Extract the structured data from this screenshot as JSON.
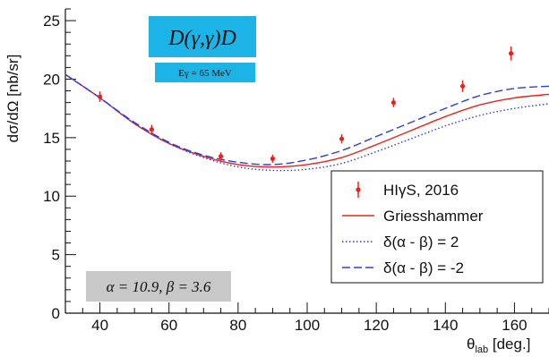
{
  "chart_data": {
    "type": "scatter",
    "title": "",
    "xlabel": "θlab [deg.]",
    "xlabel_main": "θ",
    "xlabel_sub": "lab",
    "xlabel_rest": " [deg.]",
    "ylabel": "dσ/dΩ [nb/sr]",
    "xlim": [
      30,
      170
    ],
    "ylim": [
      0,
      26
    ],
    "x_ticks": [
      40,
      60,
      80,
      100,
      120,
      140,
      160
    ],
    "y_ticks": [
      0,
      5,
      10,
      15,
      20,
      25
    ],
    "grid": false,
    "legend_position": "lower-right",
    "panel_title": "D(γ,γ)D",
    "panel_subtitle": "Eγ = 65 MeV",
    "params_label": "α = 10.9, β = 3.6",
    "series": [
      {
        "name": "HIγS, 2016",
        "kind": "points",
        "color": "#e8231e",
        "points": [
          {
            "x": 40,
            "y": 18.5,
            "err": 0.45
          },
          {
            "x": 55,
            "y": 15.7,
            "err": 0.4
          },
          {
            "x": 75,
            "y": 13.4,
            "err": 0.35
          },
          {
            "x": 90,
            "y": 13.2,
            "err": 0.35
          },
          {
            "x": 110,
            "y": 14.9,
            "err": 0.4
          },
          {
            "x": 125,
            "y": 18.0,
            "err": 0.4
          },
          {
            "x": 145,
            "y": 19.4,
            "err": 0.5
          },
          {
            "x": 159,
            "y": 22.2,
            "err": 0.6
          }
        ]
      },
      {
        "name": "Griesshammer",
        "kind": "solid",
        "color": "#e8231e",
        "x": [
          30,
          40,
          50,
          60,
          70,
          80,
          90,
          100,
          110,
          120,
          130,
          140,
          150,
          160,
          170
        ],
        "y": [
          20.4,
          18.4,
          16.2,
          14.5,
          13.4,
          12.7,
          12.5,
          12.7,
          13.3,
          14.4,
          15.6,
          16.8,
          17.8,
          18.4,
          18.7
        ]
      },
      {
        "name": "δ(α - β) = 2",
        "kind": "dotted",
        "color": "#2b3fd6",
        "x": [
          30,
          40,
          50,
          60,
          70,
          80,
          90,
          100,
          110,
          120,
          130,
          140,
          150,
          160,
          170
        ],
        "y": [
          20.4,
          18.4,
          16.2,
          14.5,
          13.3,
          12.5,
          12.2,
          12.3,
          12.8,
          13.8,
          14.9,
          16.0,
          16.9,
          17.5,
          17.9
        ]
      },
      {
        "name": "δ(α - β) = -2",
        "kind": "dashed",
        "color": "#2b3fd6",
        "x": [
          30,
          40,
          50,
          60,
          70,
          80,
          90,
          100,
          110,
          120,
          130,
          140,
          150,
          160,
          170
        ],
        "y": [
          20.4,
          18.4,
          16.3,
          14.6,
          13.5,
          12.9,
          12.7,
          13.1,
          13.9,
          15.1,
          16.3,
          17.5,
          18.6,
          19.2,
          19.4
        ]
      }
    ]
  },
  "colors": {
    "panel_bg": "#1cb4e6",
    "params_bg": "#c8c8c8",
    "data_red": "#e8231e",
    "model_blue": "#2b3fd6"
  }
}
